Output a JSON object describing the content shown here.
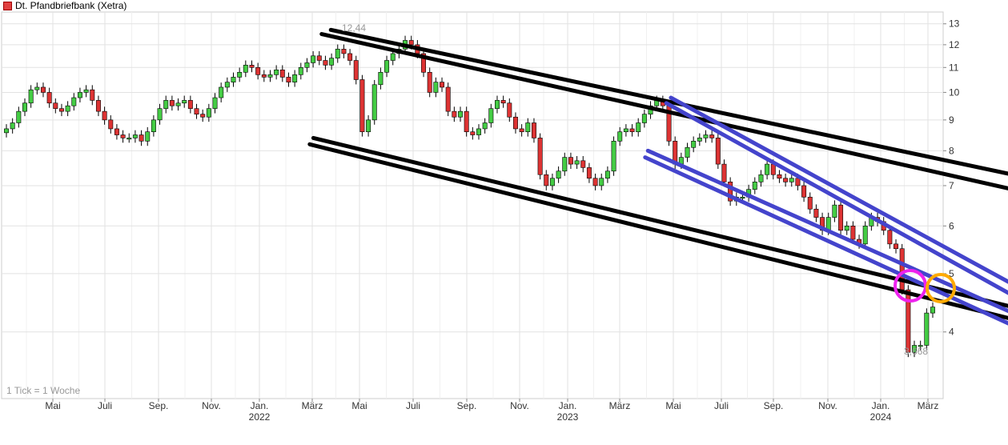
{
  "chart_data": {
    "type": "candlestick",
    "title": "Dt. Pfandbriefbank (Xetra)",
    "y_scale": "log",
    "ylim": [
      3.1,
      13.6
    ],
    "y_ticks": [
      4,
      5,
      6,
      7,
      8,
      9,
      10,
      11,
      12,
      13
    ],
    "x_labels": [
      {
        "label": "Mai"
      },
      {
        "label": "Juli"
      },
      {
        "label": "Sep."
      },
      {
        "label": "Nov."
      },
      {
        "label": "Jan.",
        "year": "2022"
      },
      {
        "label": "März"
      },
      {
        "label": "Mai"
      },
      {
        "label": "Juli"
      },
      {
        "label": "Sep."
      },
      {
        "label": "Nov."
      },
      {
        "label": "Jan.",
        "year": "2023"
      },
      {
        "label": "März"
      },
      {
        "label": "Mai"
      },
      {
        "label": "Juli"
      },
      {
        "label": "Sep."
      },
      {
        "label": "Nov."
      },
      {
        "label": "Jan.",
        "year": "2024"
      },
      {
        "label": "März"
      }
    ],
    "annotations": {
      "high_label": "12,44",
      "low_label": "3,668",
      "tick_note": "1 Tick = 1 Woche"
    },
    "grid": true,
    "colors": {
      "up": "#44cc44",
      "down": "#dd3333",
      "channel_black": "#000000",
      "channel_blue": "#4444cc",
      "circle_magenta": "#ee22ee",
      "circle_orange": "#ffaa00"
    },
    "weekly_close": [
      8.7,
      8.9,
      9.3,
      9.6,
      10.1,
      10.2,
      10.0,
      9.6,
      9.4,
      9.3,
      9.5,
      9.8,
      10.0,
      10.1,
      9.7,
      9.3,
      9.0,
      8.7,
      8.5,
      8.4,
      8.4,
      8.5,
      8.3,
      8.6,
      9.0,
      9.4,
      9.7,
      9.5,
      9.6,
      9.7,
      9.4,
      9.2,
      9.1,
      9.4,
      9.8,
      10.2,
      10.4,
      10.6,
      10.8,
      11.1,
      11.0,
      10.7,
      10.6,
      10.7,
      10.9,
      10.6,
      10.4,
      10.7,
      11.0,
      11.2,
      11.5,
      11.3,
      11.1,
      11.4,
      11.8,
      11.6,
      11.3,
      10.5,
      8.6,
      9.0,
      10.3,
      10.8,
      11.3,
      11.6,
      11.8,
      12.2,
      12.0,
      11.6,
      10.8,
      10.0,
      10.4,
      10.2,
      9.3,
      9.1,
      9.3,
      8.6,
      8.5,
      8.7,
      8.9,
      9.4,
      9.7,
      9.6,
      9.1,
      8.7,
      8.6,
      8.9,
      8.4,
      7.3,
      7.0,
      7.2,
      7.4,
      7.8,
      7.6,
      7.7,
      7.5,
      7.2,
      7.0,
      7.2,
      7.4,
      8.3,
      8.6,
      8.7,
      8.6,
      8.9,
      9.2,
      9.5,
      9.7,
      9.5,
      8.3,
      7.6,
      7.8,
      8.1,
      8.3,
      8.4,
      8.5,
      8.4,
      7.6,
      7.1,
      6.6,
      6.7,
      6.7,
      6.9,
      7.1,
      7.3,
      7.6,
      7.3,
      7.2,
      7.1,
      7.2,
      7.0,
      6.7,
      6.4,
      6.2,
      5.9,
      6.2,
      6.5,
      5.9,
      6.0,
      5.7,
      5.6,
      6.0,
      6.2,
      6.1,
      5.9,
      5.6,
      5.5,
      4.7,
      3.7,
      3.8,
      3.8,
      4.3,
      4.4
    ],
    "channel_lines_black": [
      {
        "from": [
          "2022-03-20",
          12.7
        ],
        "to": [
          "2024-03-31",
          7.3
        ]
      },
      {
        "from": [
          "2022-03-10",
          12.5
        ],
        "to": [
          "2024-03-31",
          6.9
        ]
      },
      {
        "from": [
          "2022-03-01",
          8.4
        ],
        "to": [
          "2024-03-31",
          4.4
        ]
      },
      {
        "from": [
          "2022-02-25",
          8.2
        ],
        "to": [
          "2024-03-31",
          4.2
        ]
      }
    ],
    "channel_lines_blue": [
      {
        "from": [
          "2023-03-25",
          9.8
        ],
        "to": [
          "2024-03-31",
          4.8
        ]
      },
      {
        "from": [
          "2023-03-20",
          9.6
        ],
        "to": [
          "2024-03-31",
          4.6
        ]
      },
      {
        "from": [
          "2023-02-28",
          8.0
        ],
        "to": [
          "2024-03-31",
          4.3
        ]
      },
      {
        "from": [
          "2023-02-25",
          7.8
        ],
        "to": [
          "2024-03-31",
          4.1
        ]
      }
    ]
  }
}
